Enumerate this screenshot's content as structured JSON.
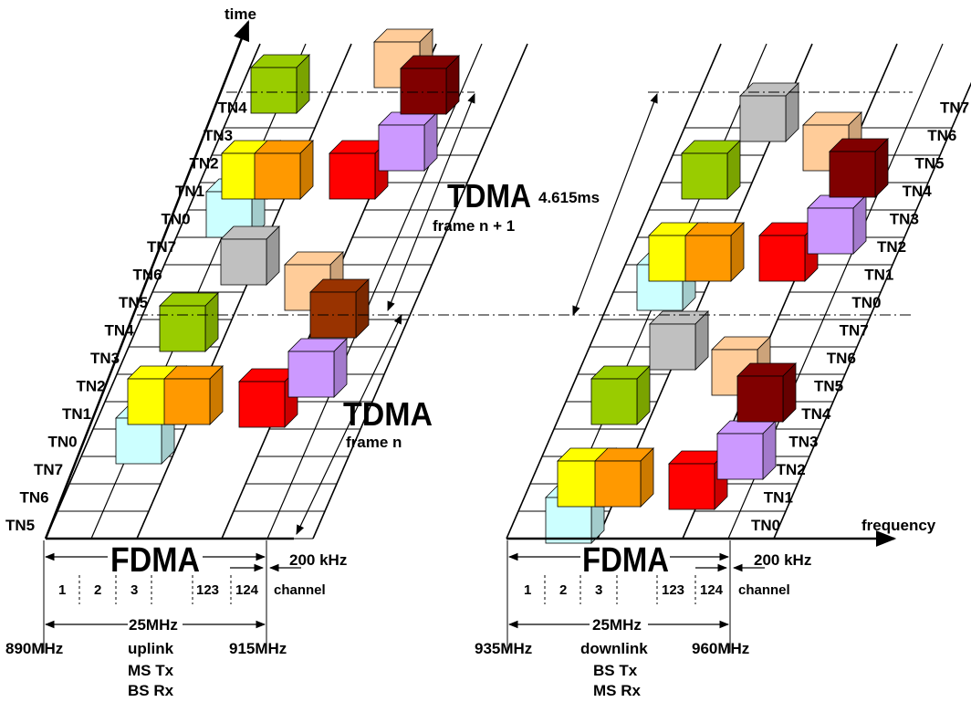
{
  "axes": {
    "time_label": "time",
    "frequency_label": "frequency"
  },
  "timeslots": {
    "left": [
      "TN5",
      "TN6",
      "TN7",
      "TN0",
      "TN1",
      "TN2",
      "TN3",
      "TN4",
      "TN5",
      "TN6",
      "TN7",
      "TN0",
      "TN1",
      "TN2",
      "TN3",
      "TN4"
    ],
    "right": [
      "TN0",
      "TN1",
      "TN2",
      "TN3",
      "TN4",
      "TN5",
      "TN6",
      "TN7",
      "TN0",
      "TN1",
      "TN2",
      "TN3",
      "TN4",
      "TN5",
      "TN6",
      "TN7"
    ]
  },
  "tdma": {
    "frame_n_title": "TDMA",
    "frame_n_label": "frame n",
    "frame_n1_title": "TDMA",
    "frame_n1_label": "frame n + 1",
    "frame_duration": "4.615ms"
  },
  "uplink": {
    "fdma": "FDMA",
    "channel_spacing": "200 kHz",
    "channels": [
      "1",
      "2",
      "3",
      "123",
      "124"
    ],
    "channel_label": "channel",
    "bandwidth": "25MHz",
    "freq_start": "890MHz",
    "freq_end": "915MHz",
    "direction": "uplink",
    "tx": "MS Tx",
    "rx": "BS Rx"
  },
  "downlink": {
    "fdma": "FDMA",
    "channel_spacing": "200 kHz",
    "channels": [
      "1",
      "2",
      "3",
      "123",
      "124"
    ],
    "channel_label": "channel",
    "bandwidth": "25MHz",
    "freq_start": "935MHz",
    "freq_end": "960MHz",
    "direction": "downlink",
    "tx": "BS Tx",
    "rx": "MS Rx"
  },
  "colors": {
    "light_cyan": "#ccffff",
    "yellow": "#ffff00",
    "orange": "#ff9900",
    "green": "#99cc00",
    "gray": "#c0c0c0",
    "red": "#ff0000",
    "lavender": "#cc99ff",
    "peach": "#ffcc99",
    "dark_red": "#800000",
    "brown": "#993300"
  }
}
